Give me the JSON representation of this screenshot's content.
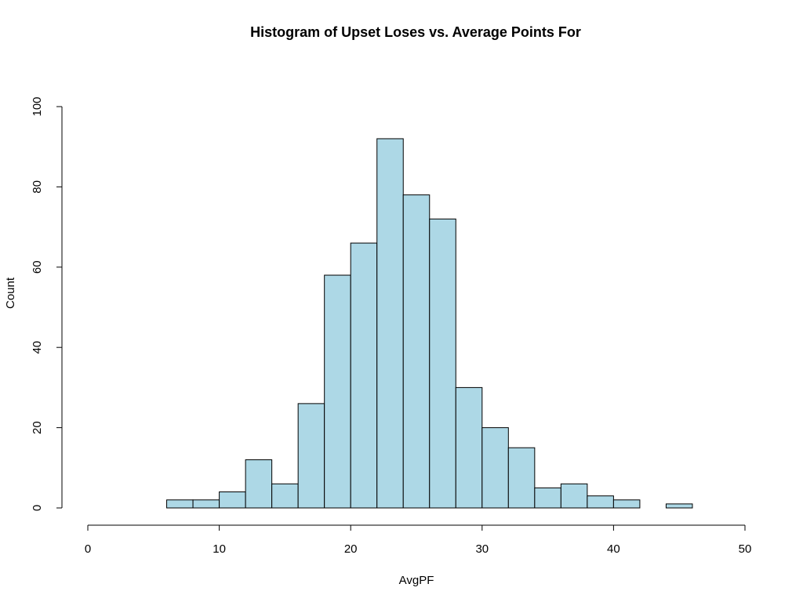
{
  "chart_data": {
    "type": "bar",
    "title": "Histogram of Upset Loses vs. Average Points For",
    "xlabel": "AvgPF",
    "ylabel": "Count",
    "xlim": [
      0,
      50
    ],
    "ylim": [
      0,
      100
    ],
    "x_ticks": [
      0,
      10,
      20,
      30,
      40,
      50
    ],
    "y_ticks": [
      0,
      20,
      40,
      60,
      80,
      100
    ],
    "bin_width": 2,
    "bins": [
      {
        "start": 6,
        "end": 8,
        "count": 2
      },
      {
        "start": 8,
        "end": 10,
        "count": 2
      },
      {
        "start": 10,
        "end": 12,
        "count": 4
      },
      {
        "start": 12,
        "end": 14,
        "count": 12
      },
      {
        "start": 14,
        "end": 16,
        "count": 6
      },
      {
        "start": 16,
        "end": 18,
        "count": 26
      },
      {
        "start": 18,
        "end": 20,
        "count": 58
      },
      {
        "start": 20,
        "end": 22,
        "count": 66
      },
      {
        "start": 22,
        "end": 24,
        "count": 92
      },
      {
        "start": 24,
        "end": 26,
        "count": 78
      },
      {
        "start": 26,
        "end": 28,
        "count": 72
      },
      {
        "start": 28,
        "end": 30,
        "count": 30
      },
      {
        "start": 30,
        "end": 32,
        "count": 20
      },
      {
        "start": 32,
        "end": 34,
        "count": 15
      },
      {
        "start": 34,
        "end": 36,
        "count": 5
      },
      {
        "start": 36,
        "end": 38,
        "count": 6
      },
      {
        "start": 38,
        "end": 40,
        "count": 3
      },
      {
        "start": 40,
        "end": 42,
        "count": 2
      },
      {
        "start": 42,
        "end": 44,
        "count": 0
      },
      {
        "start": 44,
        "end": 46,
        "count": 1
      }
    ],
    "bar_color": "#add8e6",
    "grid": false,
    "legend": "none"
  }
}
